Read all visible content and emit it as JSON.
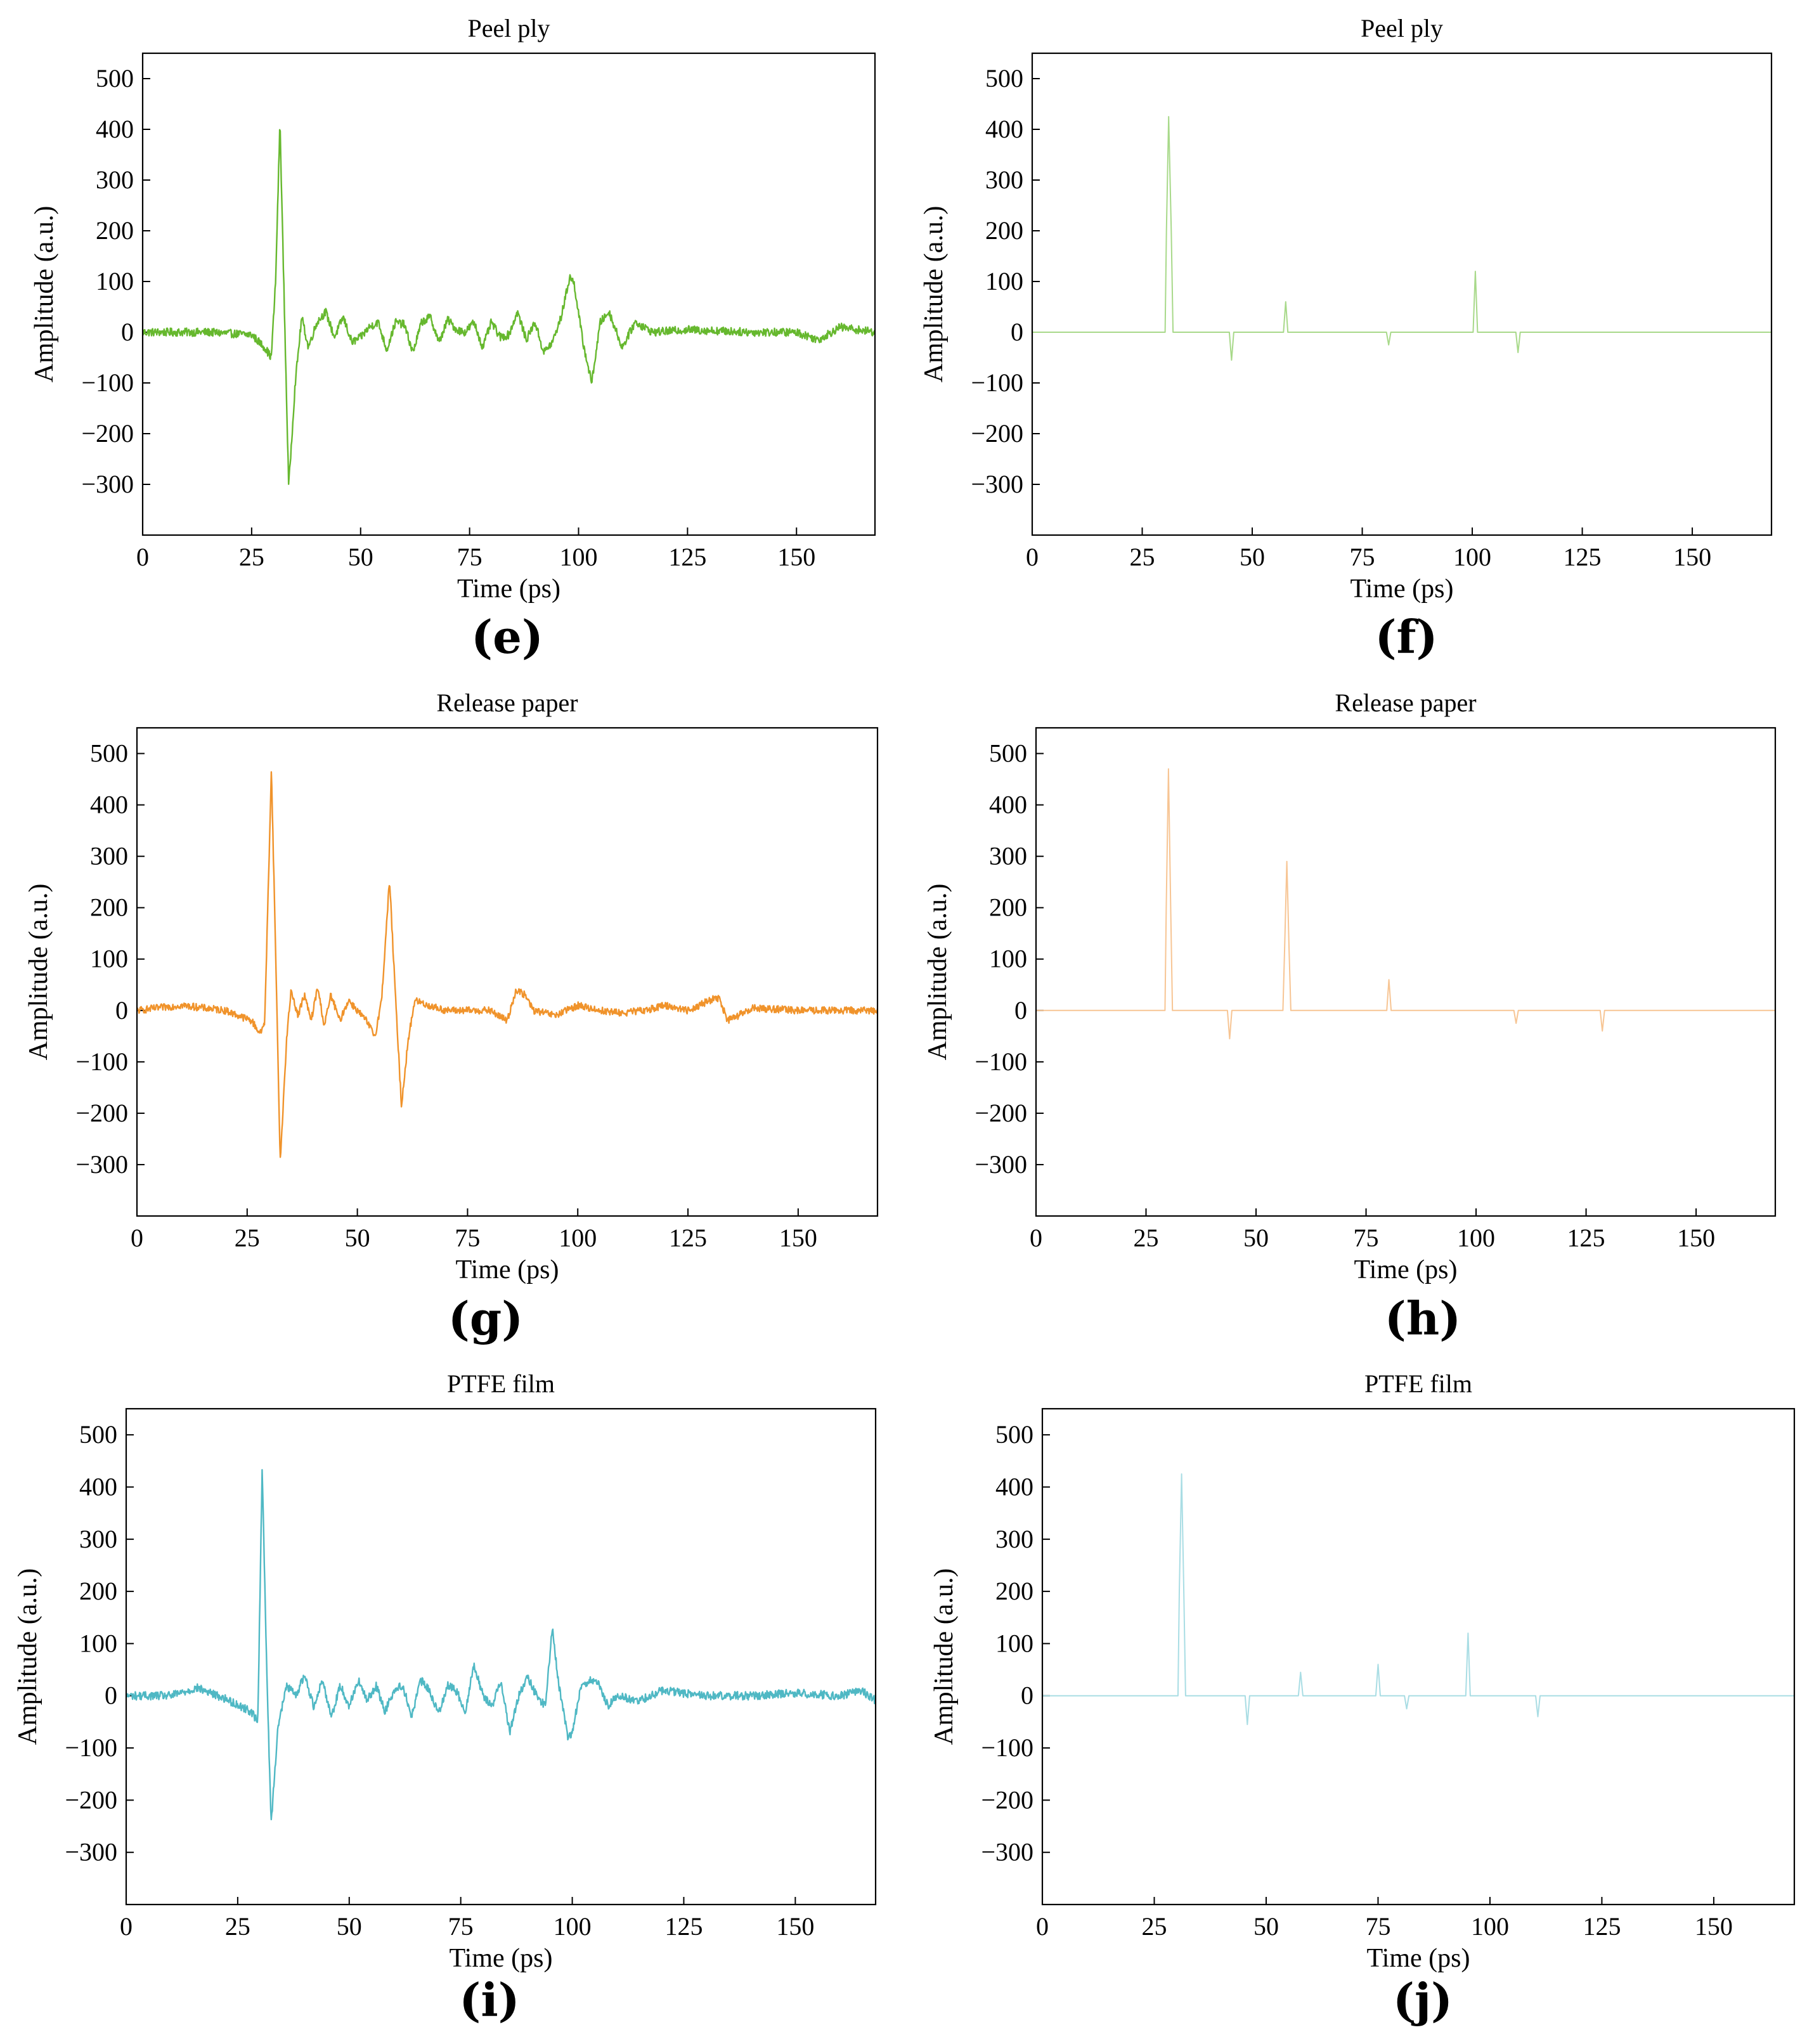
{
  "chart_data": [
    {
      "type": "line",
      "panel_label": "(e)",
      "title": "Peel ply",
      "xlabel": "Time (ps)",
      "ylabel": "Amplitude (a.u.)",
      "xlim": [
        0,
        168
      ],
      "ylim": [
        -400,
        550
      ],
      "xticks": [
        0,
        25,
        50,
        75,
        100,
        125,
        150
      ],
      "yticks": [
        -300,
        -200,
        -100,
        0,
        100,
        200,
        300,
        400,
        500
      ],
      "color": "#66b82e",
      "noise": 8,
      "series": [
        {
          "x": [
            0,
            15,
            25,
            28,
            29.5,
            30.5,
            31.5,
            32.5,
            33.5,
            35,
            36.5,
            38,
            40,
            42,
            44,
            46,
            48,
            50,
            52,
            54,
            56,
            58,
            60,
            62,
            64,
            66,
            68,
            70,
            72,
            74,
            76,
            78,
            80,
            82,
            84,
            86,
            88,
            90,
            92,
            94,
            96,
            98,
            99,
            101,
            103,
            105,
            107,
            110,
            113,
            117,
            125,
            140,
            150,
            155,
            160,
            168
          ],
          "y": [
            0,
            0,
            -5,
            -30,
            -50,
            100,
            415,
            50,
            -305,
            -100,
            30,
            -30,
            20,
            40,
            -10,
            30,
            -20,
            -10,
            10,
            20,
            -35,
            20,
            15,
            -40,
            20,
            30,
            -20,
            25,
            5,
            0,
            20,
            -30,
            20,
            -10,
            -5,
            40,
            -15,
            20,
            -40,
            -20,
            30,
            110,
            95,
            -20,
            -100,
            20,
            40,
            -30,
            20,
            0,
            5,
            0,
            0,
            -15,
            10,
            0
          ]
        }
      ]
    },
    {
      "type": "line",
      "panel_label": "(f)",
      "title": "Peel ply",
      "xlabel": "Time (ps)",
      "ylabel": "Amplitude (a.u.)",
      "xlim": [
        0,
        168
      ],
      "ylim": [
        -400,
        550
      ],
      "xticks": [
        0,
        25,
        50,
        75,
        100,
        125,
        150
      ],
      "yticks": [
        -300,
        -200,
        -100,
        0,
        100,
        200,
        300,
        400,
        500
      ],
      "color": "#a8d98a",
      "noise": 0,
      "series": [
        {
          "x": [
            0,
            30.2,
            30.5,
            31,
            31.6,
            32,
            44.8,
            45.3,
            45.8,
            57.1,
            57.6,
            58.1,
            80.5,
            81,
            81.5,
            100.2,
            100.7,
            101.2,
            109.9,
            110.4,
            110.9,
            168
          ],
          "y": [
            0,
            0,
            200,
            425,
            200,
            0,
            0,
            -55,
            0,
            0,
            60,
            0,
            0,
            -25,
            0,
            0,
            120,
            0,
            0,
            -40,
            0,
            0
          ]
        }
      ]
    },
    {
      "type": "line",
      "panel_label": "(g)",
      "title": "Release paper",
      "xlabel": "Time (ps)",
      "ylabel": "Amplitude (a.u.)",
      "xlim": [
        0,
        168
      ],
      "ylim": [
        -400,
        550
      ],
      "xticks": [
        0,
        25,
        50,
        75,
        100,
        125,
        150
      ],
      "yticks": [
        -300,
        -200,
        -100,
        0,
        100,
        200,
        300,
        400,
        500
      ],
      "color": "#f0932b",
      "noise": 7,
      "series": [
        {
          "x": [
            0,
            10,
            20,
            26,
            28,
            29,
            30.5,
            31.5,
            32.5,
            34,
            35,
            36.5,
            38,
            39.5,
            41,
            42.5,
            44,
            46,
            48,
            50,
            52,
            54,
            55.5,
            57.3,
            58.5,
            60,
            61.5,
            63,
            66,
            70,
            80,
            84,
            86,
            88,
            90,
            95,
            100,
            105,
            110,
            115,
            120,
            125,
            130,
            132,
            134,
            140,
            150,
            160,
            168
          ],
          "y": [
            0,
            10,
            0,
            -20,
            -45,
            -20,
            470,
            100,
            -295,
            -50,
            40,
            -10,
            30,
            -20,
            45,
            -30,
            30,
            -20,
            20,
            0,
            -20,
            -50,
            20,
            255,
            50,
            -185,
            -60,
            20,
            10,
            0,
            0,
            -20,
            40,
            30,
            0,
            -10,
            10,
            0,
            -5,
            0,
            10,
            0,
            20,
            25,
            -20,
            5,
            0,
            0,
            0
          ]
        }
      ]
    },
    {
      "type": "line",
      "panel_label": "(h)",
      "title": "Release paper",
      "xlabel": "Time (ps)",
      "ylabel": "Amplitude (a.u.)",
      "xlim": [
        0,
        168
      ],
      "ylim": [
        -400,
        550
      ],
      "xticks": [
        0,
        25,
        50,
        75,
        100,
        125,
        150
      ],
      "yticks": [
        -300,
        -200,
        -100,
        0,
        100,
        200,
        300,
        400,
        500
      ],
      "color": "#f7c594",
      "noise": 0,
      "series": [
        {
          "x": [
            0,
            29.3,
            29.6,
            30.1,
            30.6,
            31,
            43.5,
            44,
            44.5,
            56.1,
            56.5,
            57,
            57.5,
            57.9,
            79.7,
            80.2,
            80.7,
            108.6,
            109.1,
            109.6,
            128.2,
            128.7,
            129.2,
            168
          ],
          "y": [
            0,
            0,
            200,
            470,
            200,
            0,
            0,
            -55,
            0,
            0,
            120,
            290,
            120,
            0,
            0,
            60,
            0,
            0,
            -25,
            0,
            0,
            -40,
            0,
            0
          ]
        }
      ]
    },
    {
      "type": "line",
      "panel_label": "(i)",
      "title": "PTFE film",
      "xlabel": "Time (ps)",
      "ylabel": "Amplitude (a.u.)",
      "xlim": [
        0,
        168
      ],
      "ylim": [
        -400,
        550
      ],
      "xticks": [
        0,
        25,
        50,
        75,
        100,
        125,
        150
      ],
      "yticks": [
        -300,
        -200,
        -100,
        0,
        100,
        200,
        300,
        400,
        500
      ],
      "color": "#4fb8c4",
      "noise": 8,
      "series": [
        {
          "x": [
            0,
            10,
            16,
            22,
            28,
            29.5,
            30.5,
            31.5,
            32.5,
            34,
            36,
            38,
            40,
            42,
            44,
            46,
            48,
            50,
            52,
            54,
            56,
            58,
            60,
            62,
            64,
            66,
            68,
            70,
            72,
            74,
            76,
            78,
            80,
            82,
            84,
            86,
            88,
            90,
            92,
            94,
            95.5,
            97,
            99,
            100,
            102,
            104,
            106,
            108,
            110,
            115,
            120,
            130,
            140,
            150,
            160,
            165,
            168
          ],
          "y": [
            0,
            0,
            15,
            -5,
            -30,
            -50,
            440,
            50,
            -245,
            -60,
            20,
            0,
            40,
            -20,
            30,
            -40,
            20,
            -20,
            30,
            -10,
            20,
            -30,
            10,
            20,
            -40,
            30,
            10,
            -35,
            20,
            10,
            -30,
            60,
            0,
            -20,
            30,
            -70,
            0,
            35,
            0,
            -20,
            130,
            20,
            -80,
            -70,
            20,
            30,
            20,
            -20,
            0,
            -10,
            10,
            0,
            0,
            5,
            0,
            10,
            -10
          ]
        }
      ]
    },
    {
      "type": "line",
      "panel_label": "(j)",
      "title": "PTFE film",
      "xlabel": "Time (ps)",
      "ylabel": "Amplitude (a.u.)",
      "xlim": [
        0,
        168
      ],
      "ylim": [
        -400,
        550
      ],
      "xticks": [
        0,
        25,
        50,
        75,
        100,
        125,
        150
      ],
      "yticks": [
        -300,
        -200,
        -100,
        0,
        100,
        200,
        300,
        400,
        500
      ],
      "color": "#a9dde4",
      "noise": 0,
      "series": [
        {
          "x": [
            0,
            30.3,
            30.6,
            31.1,
            31.6,
            32,
            45.3,
            45.8,
            46.3,
            57.2,
            57.7,
            58.2,
            74.5,
            75,
            75.5,
            80.9,
            81.4,
            81.9,
            94.6,
            95.1,
            95.6,
            110.2,
            110.7,
            111.2,
            168
          ],
          "y": [
            0,
            0,
            200,
            425,
            200,
            0,
            0,
            -55,
            0,
            0,
            45,
            0,
            0,
            60,
            0,
            0,
            -25,
            0,
            0,
            120,
            0,
            0,
            -40,
            0,
            0
          ]
        }
      ]
    }
  ]
}
